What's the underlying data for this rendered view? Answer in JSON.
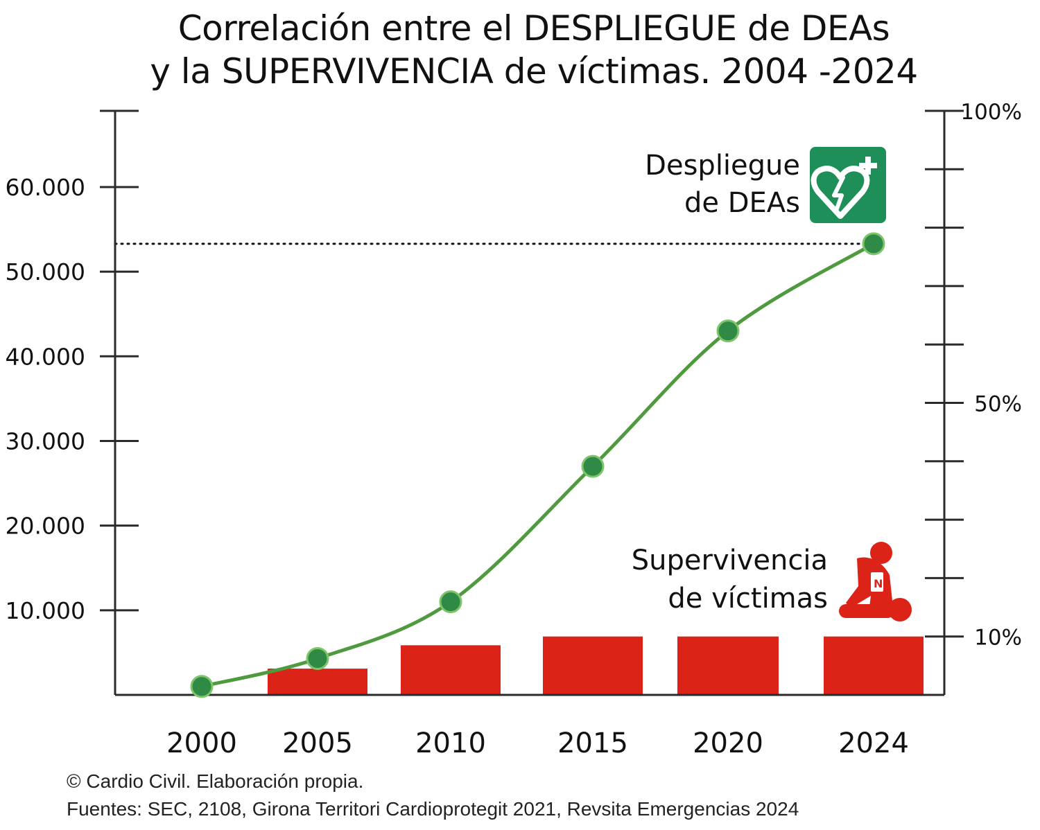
{
  "chart_data": {
    "type": "bar+line",
    "title_lines": [
      "Correlación entre el DESPLIEGUE de DEAs",
      "y la SUPERVIVENCIA de víctimas. 2004 -2024"
    ],
    "categories": [
      "2000",
      "2005",
      "2010",
      "2015",
      "2020",
      "2024"
    ],
    "y_left": {
      "ticks": [
        10000,
        20000,
        30000,
        40000,
        50000,
        60000
      ],
      "tick_labels": [
        "10.000",
        "20.000",
        "30.000",
        "40.000",
        "50.000",
        "60.000"
      ],
      "range": [
        0,
        69000
      ]
    },
    "y_right": {
      "labels": [
        "10%",
        "50%",
        "100%"
      ],
      "label_values": [
        10,
        50,
        100
      ],
      "tick_values": [
        10,
        20,
        30,
        40,
        50,
        60,
        70,
        80,
        90,
        100
      ],
      "range": [
        0,
        100
      ]
    },
    "series": [
      {
        "name": "Despliegue de DEAs",
        "name_lines": [
          "Despliegue",
          "de DEAs"
        ],
        "type": "line",
        "axis": "left",
        "color": "#4f9a3e",
        "marker_color": "#2f8a45",
        "values": [
          1000,
          4300,
          11000,
          27000,
          43000,
          53300
        ]
      },
      {
        "name": "Supervivencia de víctimas",
        "name_lines": [
          "Supervivencia",
          "de víctimas"
        ],
        "type": "bar",
        "axis": "right",
        "color": "#dc2318",
        "values": [
          null,
          4.5,
          8.5,
          10,
          10,
          10
        ]
      }
    ],
    "reference_line": {
      "axis": "left",
      "value": 53300,
      "style": "dotted"
    },
    "icons": [
      "aed-heart-icon",
      "cpr-person-icon"
    ],
    "aed_icon_color": "#1f8f5a"
  },
  "footer": {
    "line1": "© Cardio Civil. Elaboración propia.",
    "line2": "Fuentes: SEC, 2108,  Girona Territori Cardioprotegit 2021, Revsita Emergencias 2024"
  }
}
